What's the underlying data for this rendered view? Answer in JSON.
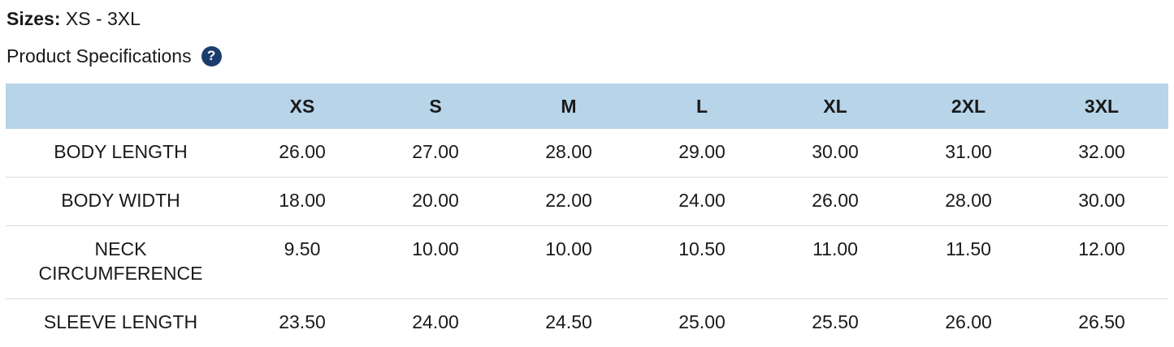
{
  "colors": {
    "header_bg": "#b7d4e8",
    "text": "#1a1a1a",
    "row_divider": "#d9d9d9",
    "help_icon_bg": "#1d3c6e",
    "help_icon_fg": "#ffffff"
  },
  "sizes": {
    "label": "Sizes:",
    "value": "XS - 3XL"
  },
  "section": {
    "title": "Product Specifications",
    "help_icon_glyph": "?"
  },
  "spec_table": {
    "columns": [
      "XS",
      "S",
      "M",
      "L",
      "XL",
      "2XL",
      "3XL"
    ],
    "rows": [
      {
        "label": "BODY LENGTH",
        "values": [
          "26.00",
          "27.00",
          "28.00",
          "29.00",
          "30.00",
          "31.00",
          "32.00"
        ]
      },
      {
        "label": "BODY WIDTH",
        "values": [
          "18.00",
          "20.00",
          "22.00",
          "24.00",
          "26.00",
          "28.00",
          "30.00"
        ]
      },
      {
        "label": "NECK CIRCUMFERENCE",
        "values": [
          "9.50",
          "10.00",
          "10.00",
          "10.50",
          "11.00",
          "11.50",
          "12.00"
        ]
      },
      {
        "label": "SLEEVE LENGTH",
        "values": [
          "23.50",
          "24.00",
          "24.50",
          "25.00",
          "25.50",
          "26.00",
          "26.50"
        ]
      }
    ]
  }
}
